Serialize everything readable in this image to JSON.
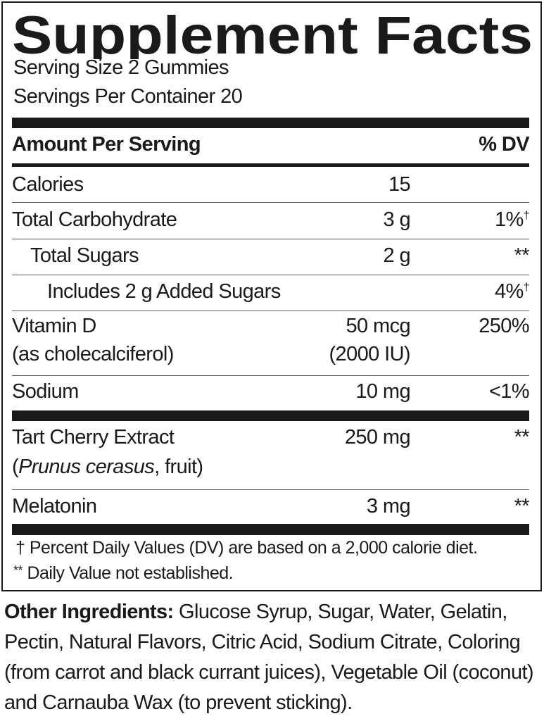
{
  "title": "Supplement Facts",
  "serving_size": "Serving Size 2 Gummies",
  "servings_per_container": "Servings Per Container 20",
  "header": {
    "amount": "Amount Per Serving",
    "dv": "% DV"
  },
  "rows": [
    {
      "name": "Calories",
      "amount": "15",
      "dv": ""
    },
    {
      "name": "Total Carbohydrate",
      "amount": "3 g",
      "dv": "1%",
      "dv_mark": "†"
    },
    {
      "name": "Total Sugars",
      "amount": "2 g",
      "dv": "**"
    },
    {
      "name": "Includes 2 g Added Sugars",
      "amount": "",
      "dv": "4%",
      "dv_mark": "†"
    },
    {
      "name": "Vitamin D",
      "name_sub": "(as cholecalciferol)",
      "amount": "50 mcg",
      "amount_sub": "(2000 IU)",
      "dv": "250%"
    },
    {
      "name": "Sodium",
      "amount": "10 mg",
      "dv": "<1%"
    },
    {
      "name": "Tart Cherry Extract",
      "name_sub_italic": "Prunus cerasus",
      "name_sub_rest": ", fruit)",
      "name_sub_open": "(",
      "amount": "250 mg",
      "dv": "**"
    },
    {
      "name": "Melatonin",
      "amount": "3 mg",
      "dv": "**"
    }
  ],
  "footnotes": {
    "dagger": "†",
    "dagger_text": "Percent Daily Values (DV) are based on a 2,000 calorie diet.",
    "stars": "**",
    "stars_text": "Daily Value not established."
  },
  "other_ingredients": {
    "label": "Other Ingredients:",
    "text": " Glucose Syrup, Sugar, Water, Gelatin, Pectin, Natural Flavors, Citric Acid, Sodium Citrate, Coloring (from carrot and black currant juices), Vegetable Oil (coconut) and Carnauba Wax (to prevent sticking)."
  }
}
